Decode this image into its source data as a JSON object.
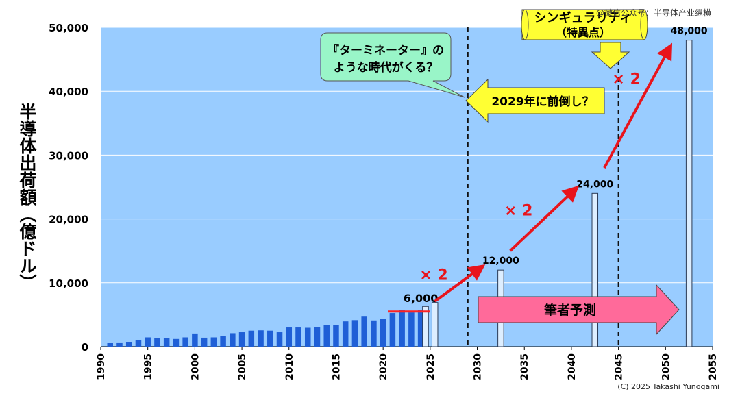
{
  "chart_data": {
    "type": "bar",
    "ylabel": "半導体出荷額（億ドル）",
    "ylim": [
      0,
      50000
    ],
    "yticks": [
      0,
      10000,
      20000,
      30000,
      40000,
      50000
    ],
    "ytick_labels": [
      "0",
      "10,000",
      "20,000",
      "30,000",
      "40,000",
      "50,000"
    ],
    "xlim": [
      1990,
      2055
    ],
    "xticks": [
      1990,
      1995,
      2000,
      2005,
      2010,
      2015,
      2020,
      2025,
      2030,
      2035,
      2040,
      2045,
      2050,
      2055
    ],
    "grid": true,
    "background_color": "#99ccff",
    "series": [
      {
        "name": "",
        "style": "actual",
        "color": "#1f5fd6",
        "x": [
          1991,
          1992,
          1993,
          1994,
          1995,
          1996,
          1997,
          1998,
          1999,
          2000,
          2001,
          2002,
          2003,
          2004,
          2005,
          2006,
          2007,
          2008,
          2009,
          2010,
          2011,
          2012,
          2013,
          2014,
          2015,
          2016,
          2017,
          2018,
          2019,
          2020,
          2021,
          2022,
          2023,
          2024
        ],
        "values": [
          550,
          650,
          750,
          1000,
          1450,
          1300,
          1350,
          1200,
          1450,
          2050,
          1400,
          1450,
          1700,
          2100,
          2250,
          2500,
          2550,
          2500,
          2250,
          3000,
          3000,
          2950,
          3050,
          3350,
          3350,
          3950,
          4150,
          4700,
          4100,
          4350,
          5250,
          5700,
          5350,
          5750
        ]
      },
      {
        "name": "",
        "style": "forecast",
        "color": "#ddeeff",
        "x": [
          2024.5,
          2025.5,
          2032.5,
          2042.5,
          2052.5
        ],
        "values": [
          6300,
          6900,
          12000,
          24000,
          48000
        ]
      }
    ],
    "value_labels": [
      {
        "x": 2024,
        "y": 6000,
        "text": "6,000"
      },
      {
        "x": 2032.5,
        "y": 12000,
        "text": "12,000"
      },
      {
        "x": 2042.5,
        "y": 24000,
        "text": "24,000"
      },
      {
        "x": 2052.5,
        "y": 48000,
        "text": "48,000"
      }
    ],
    "reference_lines": [
      {
        "x": 2029,
        "style": "dashed"
      },
      {
        "x": 2045,
        "style": "dashed"
      }
    ],
    "baseline_marker": {
      "x_from": 2020.5,
      "x_to": 2025,
      "y": 5500,
      "color": "#ff2222"
    },
    "growth_arrows": [
      {
        "from": [
          2025.5,
          7100
        ],
        "to": [
          2030.5,
          12500
        ],
        "label": "× 2"
      },
      {
        "from": [
          2033.5,
          15000
        ],
        "to": [
          2040.5,
          24800
        ],
        "label": "× 2"
      },
      {
        "from": [
          2043.5,
          28000
        ],
        "to": [
          2050.5,
          47000
        ],
        "label": "× 2"
      }
    ],
    "annotations": {
      "bubble_text": [
        "『ターミネーター』の",
        "ような時代がくる？"
      ],
      "earlier_text": "2029年に前倒し？",
      "singularity_text": [
        "シンギュラリティ",
        "（特異点）"
      ],
      "forecast_text": "筆者予測"
    }
  },
  "watermark": "@微信公众号：半导体产业纵横",
  "credit": "(C) 2025 Takashi Yunogami",
  "colors": {
    "plot_bg": "#99ccff",
    "actual_bar": "#1f5fd6",
    "forecast_bar": "#ddeeff",
    "arrow": "#e8141c",
    "bubble": "#99f5c8",
    "callout": "#ffff33",
    "forecast_arrow": "#ff6a9a"
  }
}
